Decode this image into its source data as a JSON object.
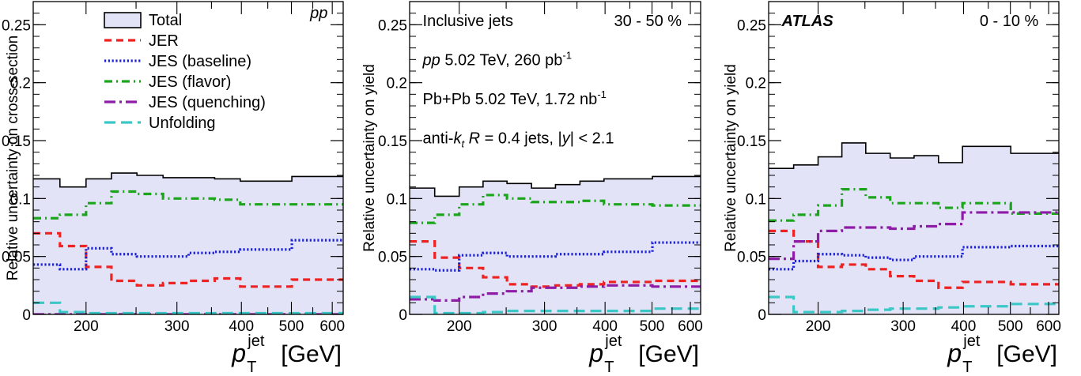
{
  "chart_data": [
    {
      "type": "line",
      "panel": "pp",
      "ylabel": "Relative uncertainty on cross-section",
      "xlabel": {
        "symbol": "p",
        "sup": "jet",
        "sub": "T",
        "unit": "[GeV]"
      },
      "xscale": "log",
      "xlim": [
        158,
        630
      ],
      "ylim": [
        0,
        0.27
      ],
      "xticks": [
        200,
        300,
        400,
        500,
        600
      ],
      "yticks": [
        0,
        0.05,
        0.1,
        0.15,
        0.2,
        0.25
      ],
      "ytick_labels": [
        "0",
        "0.05",
        "0.1",
        "0.15",
        "0.2",
        "0.25"
      ],
      "bin_edges": [
        158,
        178,
        200,
        224,
        251,
        282,
        316,
        355,
        398,
        501,
        630
      ],
      "series": [
        {
          "key": "total",
          "values": [
            0.117,
            0.11,
            0.117,
            0.122,
            0.12,
            0.118,
            0.118,
            0.117,
            0.115,
            0.119
          ]
        },
        {
          "key": "jer",
          "values": [
            0.07,
            0.059,
            0.041,
            0.029,
            0.025,
            0.027,
            0.029,
            0.031,
            0.024,
            0.03
          ]
        },
        {
          "key": "jes_base",
          "values": [
            0.043,
            0.039,
            0.057,
            0.052,
            0.05,
            0.05,
            0.053,
            0.054,
            0.056,
            0.064
          ]
        },
        {
          "key": "jes_flavor",
          "values": [
            0.083,
            0.086,
            0.096,
            0.106,
            0.104,
            0.1,
            0.1,
            0.099,
            0.095,
            0.095
          ]
        },
        {
          "key": "jes_quench",
          "values": [
            0.0,
            0.0,
            0.0,
            0.0,
            0.0,
            0.0,
            0.0,
            0.0,
            0.0,
            0.0
          ]
        },
        {
          "key": "unfolding",
          "values": [
            0.01,
            0.002,
            0.001,
            0.001,
            0.001,
            0.001,
            0.001,
            0.001,
            0.001,
            0.001
          ]
        }
      ],
      "legend": {
        "placement": "top-left",
        "entries": [
          {
            "key": "total",
            "label": "Total"
          },
          {
            "key": "jer",
            "label": "JER"
          },
          {
            "key": "jes_base",
            "label": "JES (baseline)"
          },
          {
            "key": "jes_flavor",
            "label": "JES (flavor)"
          },
          {
            "key": "jes_quench",
            "label": "JES (quenching)"
          },
          {
            "key": "unfolding",
            "label": "Unfolding"
          }
        ]
      },
      "annotations": [
        {
          "text": "pp",
          "style": "italic",
          "anchor": "end",
          "ax": 0.95,
          "ay": 0.035
        }
      ]
    },
    {
      "type": "line",
      "panel": "30-50%",
      "ylabel": "Relative uncertainty on yield",
      "xlabel": {
        "symbol": "p",
        "sup": "jet",
        "sub": "T",
        "unit": "[GeV]"
      },
      "xscale": "log",
      "xlim": [
        158,
        630
      ],
      "ylim": [
        0,
        0.27
      ],
      "xticks": [
        200,
        300,
        400,
        500,
        600
      ],
      "yticks": [
        0,
        0.05,
        0.1,
        0.15,
        0.2,
        0.25
      ],
      "ytick_labels": [
        "0",
        "0.05",
        "0.1",
        "0.15",
        "0.2",
        "0.25"
      ],
      "bin_edges": [
        158,
        178,
        200,
        224,
        251,
        282,
        316,
        355,
        398,
        501,
        630
      ],
      "series": [
        {
          "key": "total",
          "values": [
            0.109,
            0.102,
            0.11,
            0.115,
            0.113,
            0.109,
            0.112,
            0.115,
            0.117,
            0.119
          ]
        },
        {
          "key": "jer",
          "values": [
            0.063,
            0.049,
            0.04,
            0.032,
            0.026,
            0.024,
            0.025,
            0.026,
            0.028,
            0.029
          ]
        },
        {
          "key": "jes_base",
          "values": [
            0.039,
            0.038,
            0.051,
            0.053,
            0.05,
            0.05,
            0.052,
            0.052,
            0.054,
            0.062
          ]
        },
        {
          "key": "jes_flavor",
          "values": [
            0.079,
            0.086,
            0.095,
            0.103,
            0.1,
            0.097,
            0.097,
            0.098,
            0.095,
            0.094
          ]
        },
        {
          "key": "jes_quench",
          "values": [
            0.013,
            0.012,
            0.015,
            0.018,
            0.02,
            0.023,
            0.023,
            0.024,
            0.025,
            0.024
          ]
        },
        {
          "key": "unfolding",
          "values": [
            0.015,
            0.001,
            0.001,
            0.002,
            0.003,
            0.003,
            0.003,
            0.003,
            0.003,
            0.005
          ]
        }
      ],
      "annotations": [
        {
          "text": "Inclusive jets",
          "anchor": "start",
          "ax": 0.045,
          "ay": 0.06
        },
        {
          "text": "30 - 50 %",
          "anchor": "end",
          "ax": 0.935,
          "ay": 0.06
        },
        {
          "parts": [
            {
              "t": "pp",
              "s": "italic"
            },
            {
              "t": " 5.02 TeV, 260 pb"
            },
            {
              "t": "-1",
              "s": "sup"
            }
          ],
          "anchor": "start",
          "ax": 0.045,
          "ay": 0.185
        },
        {
          "parts": [
            {
              "t": "Pb+Pb 5.02 TeV, 1.72 nb"
            },
            {
              "t": "-1",
              "s": "sup"
            }
          ],
          "anchor": "start",
          "ax": 0.045,
          "ay": 0.31
        },
        {
          "parts": [
            {
              "t": "anti-"
            },
            {
              "t": "k",
              "s": "italic"
            },
            {
              "t": "t",
              "s": "sub-italic"
            },
            {
              "t": " "
            },
            {
              "t": "R",
              "s": "italic"
            },
            {
              "t": " = 0.4 jets, |"
            },
            {
              "t": "y",
              "s": "italic"
            },
            {
              "t": "| < 2.1"
            }
          ],
          "anchor": "start",
          "ax": 0.045,
          "ay": 0.435
        }
      ]
    },
    {
      "type": "line",
      "panel": "0-10%",
      "ylabel": "Relative uncertainty on yield",
      "xlabel": {
        "symbol": "p",
        "sup": "jet",
        "sub": "T",
        "unit": "[GeV]"
      },
      "xscale": "log",
      "xlim": [
        158,
        630
      ],
      "ylim": [
        0,
        0.27
      ],
      "xticks": [
        200,
        300,
        400,
        500,
        600
      ],
      "yticks": [
        0,
        0.05,
        0.1,
        0.15,
        0.2,
        0.25
      ],
      "ytick_labels": [
        "0",
        "0.05",
        "0.1",
        "0.15",
        "0.2",
        "0.25"
      ],
      "bin_edges": [
        158,
        178,
        200,
        224,
        251,
        282,
        316,
        355,
        398,
        501,
        630
      ],
      "series": [
        {
          "key": "total",
          "values": [
            0.126,
            0.129,
            0.136,
            0.148,
            0.139,
            0.135,
            0.137,
            0.131,
            0.145,
            0.139
          ]
        },
        {
          "key": "jer",
          "values": [
            0.072,
            0.063,
            0.041,
            0.043,
            0.039,
            0.033,
            0.029,
            0.023,
            0.028,
            0.026
          ]
        },
        {
          "key": "jes_base",
          "values": [
            0.039,
            0.046,
            0.052,
            0.051,
            0.049,
            0.047,
            0.05,
            0.05,
            0.058,
            0.059
          ]
        },
        {
          "key": "jes_flavor",
          "values": [
            0.081,
            0.086,
            0.094,
            0.108,
            0.101,
            0.096,
            0.096,
            0.092,
            0.096,
            0.087
          ]
        },
        {
          "key": "jes_quench",
          "values": [
            0.048,
            0.063,
            0.072,
            0.075,
            0.075,
            0.074,
            0.076,
            0.078,
            0.088,
            0.088
          ]
        },
        {
          "key": "unfolding",
          "values": [
            0.015,
            0.002,
            0.002,
            0.003,
            0.004,
            0.005,
            0.005,
            0.006,
            0.007,
            0.009
          ]
        }
      ],
      "annotations": [
        {
          "text": "ATLAS",
          "style": "bold-italic",
          "anchor": "start",
          "ax": 0.045,
          "ay": 0.06
        },
        {
          "text": "0 - 10 %",
          "anchor": "end",
          "ax": 0.93,
          "ay": 0.06
        }
      ]
    }
  ],
  "styles": {
    "total": {
      "color": "#000000",
      "fill": "#e2e3f7",
      "dash": ""
    },
    "jer": {
      "color": "#ee2222",
      "dash": "9 6"
    },
    "jes_base": {
      "color": "#1d22d8",
      "dash": "2.2 2.6"
    },
    "jes_flavor": {
      "color": "#1ba51b",
      "dash": "10 5 2 5"
    },
    "jes_quench": {
      "color": "#8e1ca6",
      "dash": "14 5 3 5"
    },
    "unfolding": {
      "color": "#3cc7c7",
      "dash": "14 7"
    }
  }
}
